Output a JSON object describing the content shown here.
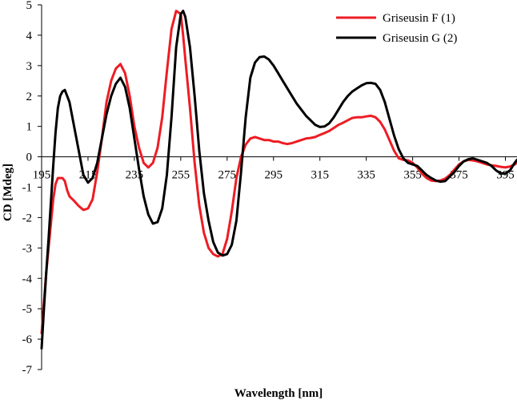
{
  "chart_data": {
    "type": "line",
    "title": "",
    "xlabel": "Wavelength [nm]",
    "ylabel": "CD [Mdeg]",
    "xlim": [
      195,
      400
    ],
    "ylim": [
      -7,
      5
    ],
    "xticks": [
      195,
      215,
      235,
      255,
      275,
      295,
      315,
      335,
      355,
      375,
      395
    ],
    "yticks": [
      -7,
      -6,
      -5,
      -4,
      -3,
      -2,
      -1,
      0,
      1,
      2,
      3,
      4,
      5
    ],
    "grid": false,
    "legend_position": "top-right",
    "series": [
      {
        "name": "Griseusin F (1)",
        "color": "#ee1c24",
        "x": [
          195,
          196,
          197,
          198,
          199,
          200,
          201,
          202,
          203,
          204,
          205,
          206,
          207,
          209,
          211,
          213,
          215,
          217,
          219,
          221,
          223,
          225,
          227,
          229,
          231,
          233,
          235,
          237,
          239,
          241,
          243,
          245,
          247,
          249,
          251,
          253,
          255,
          256,
          257,
          259,
          261,
          263,
          265,
          267,
          269,
          271,
          273,
          275,
          277,
          279,
          281,
          283,
          285,
          287,
          289,
          291,
          293,
          295,
          297,
          299,
          301,
          303,
          305,
          307,
          309,
          311,
          313,
          315,
          317,
          319,
          321,
          323,
          325,
          327,
          329,
          331,
          333,
          335,
          337,
          339,
          341,
          343,
          345,
          347,
          349,
          351,
          353,
          355,
          357,
          359,
          361,
          363,
          365,
          367,
          369,
          371,
          373,
          375,
          377,
          379,
          381,
          383,
          385,
          387,
          389,
          391,
          393,
          395,
          397,
          399,
          400
        ],
        "y": [
          -5.8,
          -4.8,
          -3.8,
          -3.0,
          -2.2,
          -1.4,
          -0.9,
          -0.7,
          -0.7,
          -0.7,
          -0.8,
          -1.1,
          -1.3,
          -1.45,
          -1.62,
          -1.75,
          -1.7,
          -1.4,
          -0.5,
          0.6,
          1.8,
          2.5,
          2.9,
          3.05,
          2.75,
          2.0,
          1.0,
          0.3,
          -0.2,
          -0.35,
          -0.2,
          0.3,
          1.3,
          2.8,
          4.2,
          4.8,
          4.7,
          4.0,
          3.2,
          1.6,
          -0.2,
          -1.6,
          -2.5,
          -3.0,
          -3.2,
          -3.28,
          -3.2,
          -2.7,
          -1.8,
          -0.7,
          0.0,
          0.4,
          0.6,
          0.65,
          0.6,
          0.55,
          0.55,
          0.5,
          0.5,
          0.45,
          0.42,
          0.45,
          0.5,
          0.55,
          0.6,
          0.62,
          0.65,
          0.72,
          0.78,
          0.85,
          0.95,
          1.05,
          1.12,
          1.2,
          1.28,
          1.3,
          1.3,
          1.33,
          1.35,
          1.3,
          1.15,
          0.9,
          0.55,
          0.2,
          -0.05,
          -0.1,
          -0.12,
          -0.2,
          -0.35,
          -0.55,
          -0.7,
          -0.78,
          -0.8,
          -0.78,
          -0.72,
          -0.6,
          -0.42,
          -0.25,
          -0.15,
          -0.1,
          -0.12,
          -0.15,
          -0.2,
          -0.25,
          -0.28,
          -0.3,
          -0.33,
          -0.35,
          -0.32,
          -0.25,
          -0.2
        ]
      },
      {
        "name": "Griseusin G (2)",
        "color": "#000000",
        "x": [
          195,
          196,
          197,
          198,
          199,
          200,
          201,
          202,
          203,
          204,
          205,
          207,
          209,
          211,
          213,
          215,
          217,
          219,
          221,
          223,
          225,
          227,
          229,
          231,
          233,
          235,
          237,
          239,
          241,
          243,
          245,
          247,
          249,
          251,
          253,
          255,
          256,
          257,
          259,
          261,
          263,
          265,
          267,
          269,
          271,
          273,
          275,
          277,
          279,
          281,
          283,
          285,
          287,
          289,
          291,
          293,
          295,
          297,
          299,
          301,
          303,
          305,
          307,
          309,
          311,
          313,
          315,
          317,
          319,
          321,
          323,
          325,
          327,
          329,
          331,
          333,
          335,
          337,
          339,
          341,
          343,
          345,
          347,
          349,
          351,
          353,
          355,
          357,
          359,
          361,
          363,
          365,
          367,
          369,
          371,
          373,
          375,
          377,
          379,
          381,
          383,
          385,
          387,
          389,
          391,
          393,
          395,
          397,
          399,
          400
        ],
        "y": [
          -6.3,
          -5.0,
          -3.8,
          -2.7,
          -1.5,
          -0.3,
          0.8,
          1.6,
          2.0,
          2.15,
          2.2,
          1.8,
          1.0,
          0.2,
          -0.6,
          -0.85,
          -0.7,
          -0.2,
          0.6,
          1.4,
          2.0,
          2.4,
          2.6,
          2.3,
          1.6,
          0.6,
          -0.4,
          -1.3,
          -1.9,
          -2.2,
          -2.15,
          -1.7,
          -0.6,
          1.3,
          3.6,
          4.7,
          4.8,
          4.6,
          3.6,
          2.0,
          0.2,
          -1.2,
          -2.1,
          -2.8,
          -3.15,
          -3.25,
          -3.2,
          -2.9,
          -2.1,
          -0.5,
          1.3,
          2.6,
          3.1,
          3.28,
          3.3,
          3.2,
          3.0,
          2.75,
          2.5,
          2.25,
          2.0,
          1.75,
          1.55,
          1.35,
          1.2,
          1.05,
          0.98,
          1.0,
          1.1,
          1.3,
          1.55,
          1.8,
          2.0,
          2.15,
          2.25,
          2.35,
          2.42,
          2.43,
          2.4,
          2.2,
          1.8,
          1.25,
          0.7,
          0.25,
          -0.05,
          -0.2,
          -0.25,
          -0.3,
          -0.45,
          -0.6,
          -0.7,
          -0.78,
          -0.82,
          -0.8,
          -0.65,
          -0.5,
          -0.3,
          -0.15,
          -0.08,
          -0.05,
          -0.1,
          -0.15,
          -0.2,
          -0.3,
          -0.45,
          -0.55,
          -0.55,
          -0.45,
          -0.2,
          -0.1
        ]
      }
    ]
  }
}
